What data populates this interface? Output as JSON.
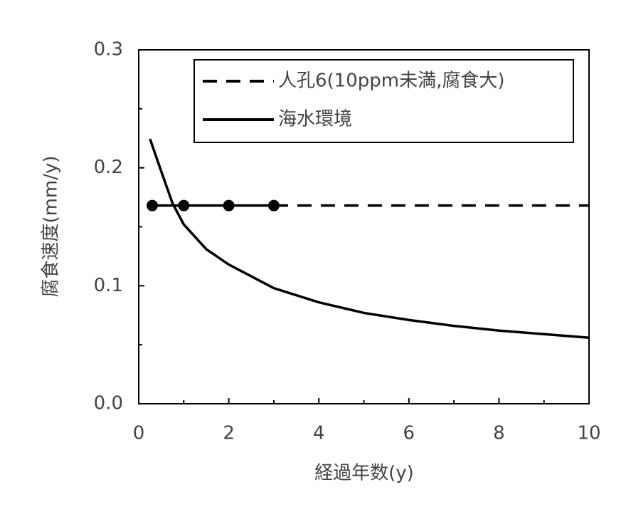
{
  "chart_data": {
    "type": "line",
    "xlabel": "経過年数(y)",
    "ylabel": "腐食速度(mm/y)",
    "xlim": [
      0,
      10
    ],
    "xticks": [
      0,
      2,
      4,
      6,
      8,
      10
    ],
    "xminor": [
      1,
      3,
      5,
      7,
      9
    ],
    "ylim": [
      0,
      0.3
    ],
    "yticks": [
      {
        "value": 0,
        "label": "0.0"
      },
      {
        "value": 0.1,
        "label": "0.1"
      },
      {
        "value": 0.2,
        "label": "0.2"
      },
      {
        "value": 0.3,
        "label": "0.3"
      }
    ],
    "yminor": [
      0.05,
      0.15,
      0.25
    ],
    "legend": "upper right",
    "series": [
      {
        "name": "人孔6(10ppm未満,腐食大)",
        "color": "#000000",
        "style": "dashed",
        "markers": true,
        "x": [
          0.3,
          1,
          2,
          3
        ],
        "values": [
          0.168,
          0.168,
          0.168,
          0.168
        ],
        "trend": {
          "x": [
            3,
            10
          ],
          "values": [
            0.168,
            0.168
          ]
        }
      },
      {
        "name": "海水環境",
        "color": "#000000",
        "style": "solid",
        "markers": false,
        "x": [
          0.25,
          0.5,
          0.75,
          1,
          1.5,
          2,
          3,
          4,
          5,
          6,
          7,
          8,
          9,
          10
        ],
        "values": [
          0.2245,
          0.197,
          0.17,
          0.152,
          0.131,
          0.118,
          0.098,
          0.086,
          0.077,
          0.071,
          0.066,
          0.062,
          0.059,
          0.056
        ]
      }
    ]
  }
}
